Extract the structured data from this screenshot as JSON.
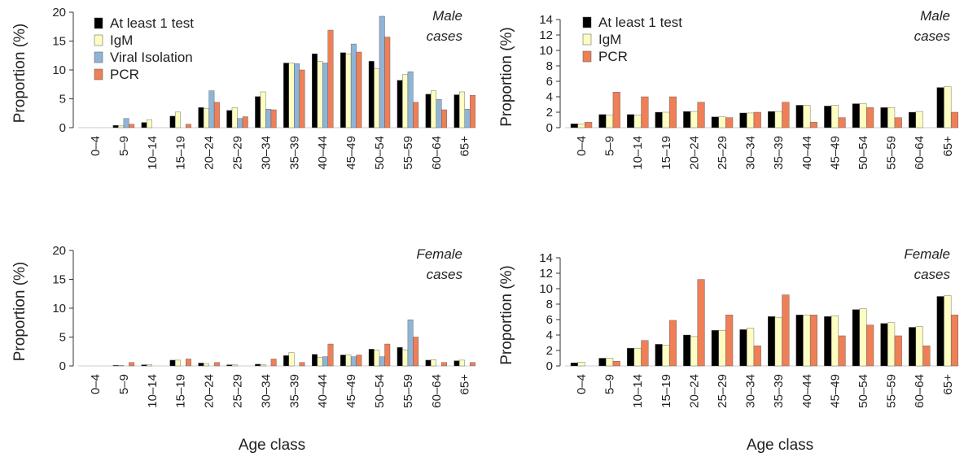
{
  "figure": {
    "xlabel": "Age class",
    "ylabel": "Proportion (%)"
  },
  "colors": {
    "At least 1 test": "#000000",
    "IgM": "#fdfdc2",
    "Viral Isolation": "#8fb4d6",
    "PCR": "#ee7f57"
  },
  "chart_data": [
    {
      "type": "bar",
      "panel_label": [
        "Male",
        "cases"
      ],
      "ylabel": "Proportion (%)",
      "ylim": [
        0,
        20
      ],
      "yticks": [
        0,
        5,
        10,
        15,
        20
      ],
      "legend": "top-left",
      "categories": [
        "0–4",
        "5–9",
        "10–14",
        "15–19",
        "20–24",
        "25–29",
        "30–34",
        "35–39",
        "40–44",
        "45–49",
        "50–54",
        "55–59",
        "60–64",
        "65+"
      ],
      "series": [
        {
          "name": "At least 1 test",
          "values": [
            0,
            0.4,
            0.9,
            2.0,
            3.5,
            3.0,
            5.4,
            11.2,
            12.8,
            13.0,
            11.5,
            8.2,
            5.8,
            5.7
          ]
        },
        {
          "name": "IgM",
          "values": [
            0,
            0.3,
            1.4,
            2.7,
            3.3,
            3.5,
            6.2,
            11.2,
            11.5,
            12.8,
            10.2,
            9.2,
            6.4,
            6.2
          ]
        },
        {
          "name": "Viral Isolation",
          "values": [
            0,
            1.6,
            0,
            0,
            6.4,
            1.6,
            3.2,
            11.1,
            11.2,
            14.5,
            19.3,
            9.7,
            4.9,
            3.2
          ]
        },
        {
          "name": "PCR",
          "values": [
            0,
            0.6,
            0,
            0.6,
            4.4,
            1.9,
            3.1,
            10.0,
            16.9,
            13.1,
            15.7,
            4.4,
            3.1,
            5.6
          ]
        }
      ]
    },
    {
      "type": "bar",
      "panel_label": [
        "Male",
        "cases"
      ],
      "ylabel": "Proportion (%)",
      "ylim": [
        0,
        14
      ],
      "yticks": [
        0,
        2,
        4,
        6,
        8,
        10,
        12,
        14
      ],
      "legend": "top-left",
      "categories": [
        "0–4",
        "5–9",
        "10–14",
        "15–19",
        "20–24",
        "25–29",
        "30–34",
        "35–39",
        "40–44",
        "45–49",
        "50–54",
        "55–59",
        "60–64",
        "65+"
      ],
      "series": [
        {
          "name": "At least 1 test",
          "values": [
            0.5,
            1.7,
            1.7,
            2.0,
            2.1,
            1.4,
            1.9,
            2.1,
            2.9,
            2.8,
            3.1,
            2.6,
            2.0,
            5.2
          ]
        },
        {
          "name": "IgM",
          "values": [
            0.5,
            1.6,
            1.6,
            2.0,
            2.1,
            1.4,
            1.9,
            2.1,
            2.9,
            2.9,
            3.1,
            2.6,
            2.1,
            5.3
          ]
        },
        {
          "name": "PCR",
          "values": [
            0.7,
            4.6,
            4.0,
            4.0,
            3.3,
            1.3,
            2.0,
            3.3,
            0.7,
            1.3,
            2.6,
            1.3,
            0,
            2.0
          ]
        }
      ]
    },
    {
      "type": "bar",
      "panel_label": [
        "Female",
        "cases"
      ],
      "ylabel": "Proportion (%)",
      "ylim": [
        0,
        20
      ],
      "yticks": [
        0,
        5,
        10,
        15,
        20
      ],
      "categories": [
        "0–4",
        "5–9",
        "10–14",
        "15–19",
        "20–24",
        "25–29",
        "30–34",
        "35–39",
        "40–44",
        "45–49",
        "50–54",
        "55–59",
        "60–64",
        "65+"
      ],
      "series": [
        {
          "name": "At least 1 test",
          "values": [
            0,
            0.1,
            0.2,
            1.0,
            0.5,
            0.2,
            0.3,
            1.8,
            2.0,
            1.9,
            2.9,
            3.2,
            1.0,
            0.9
          ]
        },
        {
          "name": "IgM",
          "values": [
            0,
            0.1,
            0.2,
            1.0,
            0.4,
            0.2,
            0.2,
            2.3,
            1.5,
            1.9,
            2.7,
            2.8,
            1.1,
            1.0
          ]
        },
        {
          "name": "Viral Isolation",
          "values": [
            0,
            0,
            0,
            0,
            0,
            0,
            0,
            0,
            1.6,
            1.6,
            1.6,
            8.0,
            0,
            0
          ]
        },
        {
          "name": "PCR",
          "values": [
            0,
            0.6,
            0,
            1.2,
            0.6,
            0,
            1.2,
            0.6,
            3.8,
            1.9,
            3.8,
            5.0,
            0.6,
            0.6
          ]
        }
      ]
    },
    {
      "type": "bar",
      "panel_label": [
        "Female",
        "cases"
      ],
      "ylabel": "Proportion (%)",
      "ylim": [
        0,
        14
      ],
      "yticks": [
        0,
        2,
        4,
        6,
        8,
        10,
        12,
        14
      ],
      "categories": [
        "0–4",
        "5–9",
        "10–14",
        "15–19",
        "20–24",
        "25–29",
        "30–34",
        "35–39",
        "40–44",
        "45–49",
        "50–54",
        "55–59",
        "60–64",
        "65+"
      ],
      "series": [
        {
          "name": "At least 1 test",
          "values": [
            0.4,
            1.0,
            2.3,
            2.8,
            4.0,
            4.6,
            4.7,
            6.4,
            6.6,
            6.4,
            7.3,
            5.5,
            5.0,
            9.0
          ]
        },
        {
          "name": "IgM",
          "values": [
            0.5,
            1.0,
            2.3,
            2.7,
            3.8,
            4.6,
            4.9,
            6.3,
            6.6,
            6.5,
            7.4,
            5.6,
            5.1,
            9.1
          ]
        },
        {
          "name": "PCR",
          "values": [
            0,
            0.6,
            3.3,
            5.9,
            11.2,
            6.6,
            2.6,
            9.2,
            6.6,
            3.9,
            5.3,
            3.9,
            2.6,
            6.6
          ]
        }
      ]
    }
  ]
}
